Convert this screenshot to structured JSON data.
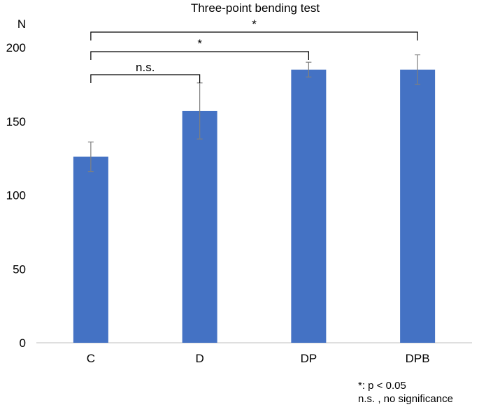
{
  "chart_data": {
    "type": "bar",
    "title": "Three-point bending test",
    "ylabel": "N",
    "xlabel": "",
    "categories": [
      "C",
      "D",
      "DP",
      "DPB"
    ],
    "values": [
      126,
      157,
      185,
      185
    ],
    "errors": [
      10,
      19,
      5,
      10
    ],
    "ylim": [
      0,
      200
    ],
    "yticks": [
      0,
      50,
      100,
      150,
      200
    ],
    "grid": false,
    "bar_color": "#4472c4",
    "error_color": "#7f7f7f",
    "significance": [
      {
        "from": "C",
        "to": "D",
        "label": "n.s."
      },
      {
        "from": "C",
        "to": "DP",
        "label": "*"
      },
      {
        "from": "C",
        "to": "DPB",
        "label": "*"
      }
    ]
  },
  "footnotes": {
    "line1": "*: p < 0.05",
    "line2": "n.s. , no significance"
  }
}
